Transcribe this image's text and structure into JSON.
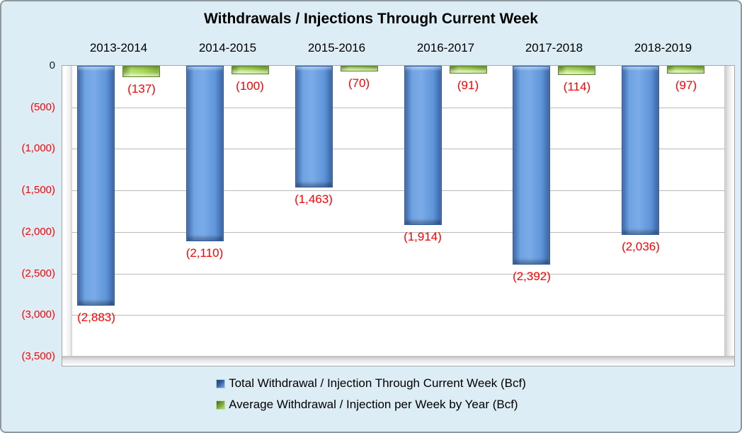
{
  "page": {
    "background_color": "#dcedf5",
    "border_color": "#8c979e"
  },
  "chart_data": {
    "type": "bar",
    "title": "Withdrawals / Injections Through Current Week",
    "categories": [
      "2013-2014",
      "2014-2015",
      "2015-2016",
      "2016-2017",
      "2017-2018",
      "2018-2019"
    ],
    "series": [
      {
        "name": "Total Withdrawal / Injection Through Current Week (Bcf)",
        "color": "#5f95da",
        "values": [
          -2883,
          -2110,
          -1463,
          -1914,
          -2392,
          -2036
        ],
        "data_labels": [
          "(2,883)",
          "(2,110)",
          "(1,463)",
          "(1,914)",
          "(2,392)",
          "(2,036)"
        ]
      },
      {
        "name": "Average Withdrawal / Injection per Week by Year (Bcf)",
        "color": "#a8d957",
        "values": [
          -137,
          -100,
          -70,
          -91,
          -114,
          -97
        ],
        "data_labels": [
          "(137)",
          "(100)",
          "(70)",
          "(91)",
          "(114)",
          "(97)"
        ]
      }
    ],
    "y_axis": {
      "min": -3500,
      "max": 0,
      "tick_interval": 500,
      "tick_labels": [
        "0",
        "(500)",
        "(1,000)",
        "(1,500)",
        "(2,000)",
        "(2,500)",
        "(3,000)",
        "(3,500)"
      ],
      "zero_label_color": "#1a1a1a",
      "negative_label_color": "#ff0000"
    },
    "data_label_color": "#ff0000",
    "gridline_color": "#b9b9b9",
    "grid": true,
    "legend_position": "bottom"
  }
}
